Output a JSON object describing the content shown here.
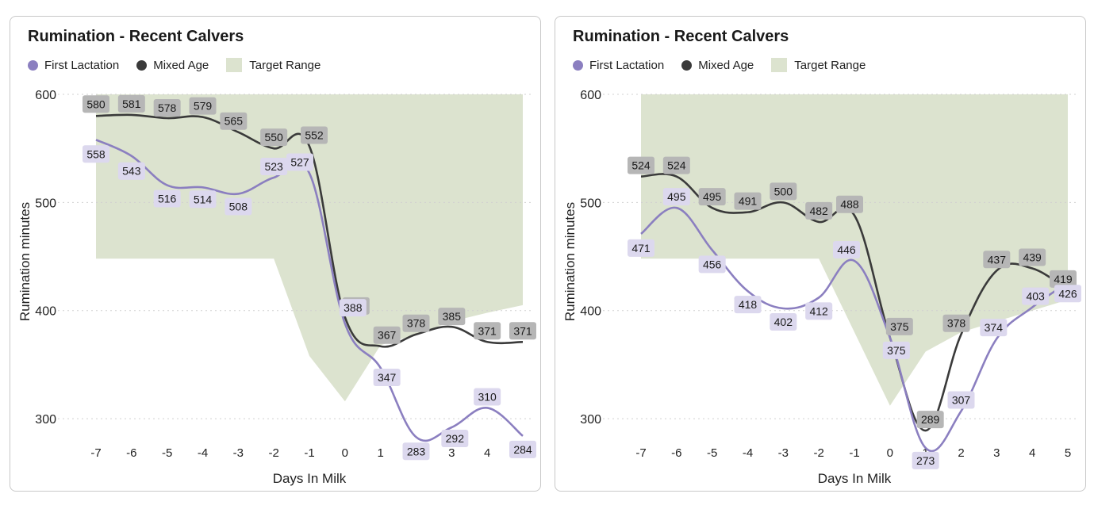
{
  "colors": {
    "first_lactation": "#8b7fc0",
    "mixed_age": "#3a3a3a",
    "target_range": "#dce3cf",
    "first_lactation_label_bg": "#dcd8ee",
    "mixed_age_label_bg": "#b6b6b6"
  },
  "legend_icons": {
    "first_lactation": "circle",
    "mixed_age": "circle",
    "target_range": "square"
  },
  "chart_data": [
    {
      "type": "line",
      "title": "Rumination - Recent Calvers",
      "xlabel": "Days In Milk",
      "ylabel": "Rumination minutes",
      "x": [
        -7,
        -6,
        -5,
        -4,
        -3,
        -2,
        -1,
        0,
        1,
        2,
        3,
        4,
        5
      ],
      "y_ticks": [
        300,
        400,
        500,
        600
      ],
      "ylim": [
        270,
        600
      ],
      "grid": "horizontal-dotted",
      "legend_position": "top-left",
      "series": [
        {
          "name": "First Lactation",
          "x": [
            -7,
            -6,
            -5,
            -4,
            -3,
            -2,
            -1,
            0,
            1,
            2,
            3,
            4,
            5
          ],
          "values": [
            558,
            543,
            516,
            514,
            508,
            523,
            527,
            388,
            347,
            283,
            292,
            310,
            284
          ]
        },
        {
          "name": "Mixed Age",
          "x": [
            -7,
            -6,
            -5,
            -4,
            -3,
            -2,
            -1,
            0,
            1,
            2,
            3,
            4,
            5
          ],
          "values": [
            580,
            581,
            578,
            579,
            565,
            550,
            552,
            394,
            367,
            378,
            385,
            371,
            371
          ]
        },
        {
          "name": "Target Range",
          "upper": [
            [
              -7,
              600
            ],
            [
              5,
              600
            ],
            [
              5,
              405
            ]
          ],
          "lower": [
            [
              -7,
              448
            ],
            [
              -2,
              448
            ],
            [
              -1,
              358
            ],
            [
              0,
              316
            ],
            [
              1,
              368
            ],
            [
              2,
              378
            ],
            [
              3,
              390
            ],
            [
              4,
              398
            ],
            [
              5,
              405
            ]
          ]
        }
      ]
    },
    {
      "type": "line",
      "title": "Rumination - Recent Calvers",
      "xlabel": "Days In Milk",
      "ylabel": "Rumination minutes",
      "x": [
        -7,
        -6,
        -5,
        -4,
        -3,
        -2,
        -1,
        0,
        1,
        2,
        3,
        4,
        5
      ],
      "y_ticks": [
        300,
        400,
        500,
        600
      ],
      "ylim": [
        270,
        600
      ],
      "grid": "horizontal-dotted",
      "legend_position": "top-left",
      "series": [
        {
          "name": "First Lactation",
          "x": [
            -7,
            -6,
            -5,
            -4,
            -3,
            -2,
            -1,
            0,
            1,
            2,
            3,
            4,
            5
          ],
          "values": [
            471,
            495,
            456,
            418,
            402,
            412,
            446,
            375,
            273,
            307,
            374,
            403,
            426
          ]
        },
        {
          "name": "Mixed Age",
          "x": [
            -7,
            -6,
            -5,
            -4,
            -3,
            -2,
            -1,
            0,
            1,
            2,
            3,
            4,
            5
          ],
          "values": [
            524,
            524,
            495,
            491,
            500,
            482,
            488,
            375,
            289,
            378,
            437,
            439,
            419
          ]
        },
        {
          "name": "Target Range",
          "upper": [
            [
              -7,
              600
            ],
            [
              5,
              600
            ],
            [
              5,
              450
            ]
          ],
          "lower": [
            [
              -7,
              448
            ],
            [
              -2,
              448
            ],
            [
              -1,
              380
            ],
            [
              0,
              312
            ],
            [
              1,
              362
            ],
            [
              2,
              380
            ],
            [
              3,
              390
            ],
            [
              4,
              400
            ],
            [
              5,
              410
            ]
          ]
        }
      ]
    }
  ]
}
